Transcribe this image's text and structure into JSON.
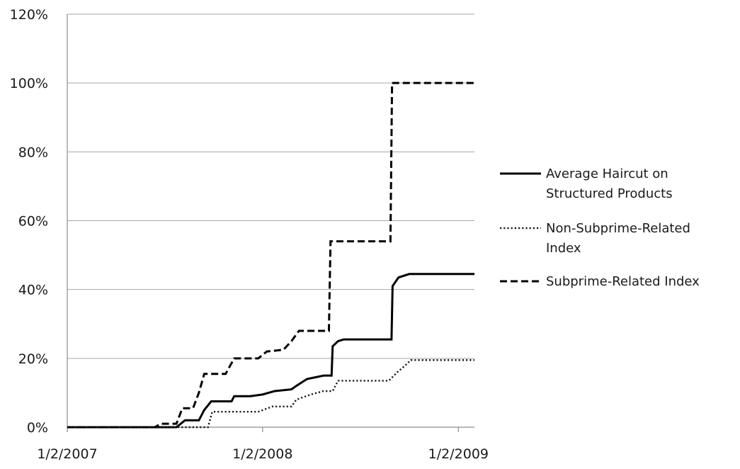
{
  "chart_data": {
    "type": "line",
    "title": "",
    "xlabel": "",
    "ylabel": "",
    "x_ticks": [
      "1/2/2007",
      "1/2/2008",
      "1/2/2009"
    ],
    "x_range": [
      "2007-01-02",
      "2009-02-01"
    ],
    "y_ticks": [
      "0%",
      "20%",
      "40%",
      "60%",
      "80%",
      "100%",
      "120%"
    ],
    "ylim": [
      0,
      120
    ],
    "y_unit": "%",
    "grid": "horizontal",
    "legend_position": "right",
    "series": [
      {
        "name": "Average Haircut on Structured Products",
        "line_style": "solid",
        "color": "#000000",
        "points": [
          [
            "2007-01-02",
            0
          ],
          [
            "2007-07-25",
            0
          ],
          [
            "2007-08-10",
            2
          ],
          [
            "2007-09-05",
            2
          ],
          [
            "2007-09-15",
            5
          ],
          [
            "2007-09-28",
            7.5
          ],
          [
            "2007-11-05",
            7.5
          ],
          [
            "2007-11-10",
            9
          ],
          [
            "2007-12-10",
            9
          ],
          [
            "2008-01-02",
            9.5
          ],
          [
            "2008-01-25",
            10.5
          ],
          [
            "2008-02-25",
            11
          ],
          [
            "2008-03-05",
            12
          ],
          [
            "2008-03-25",
            14
          ],
          [
            "2008-04-25",
            15
          ],
          [
            "2008-05-10",
            15
          ],
          [
            "2008-05-12",
            23.5
          ],
          [
            "2008-05-22",
            25
          ],
          [
            "2008-06-02",
            25.5
          ],
          [
            "2008-08-30",
            25.5
          ],
          [
            "2008-09-01",
            41
          ],
          [
            "2008-09-12",
            43.5
          ],
          [
            "2008-10-02",
            44.5
          ],
          [
            "2008-10-12",
            44.5
          ],
          [
            "2009-02-01",
            44.5
          ]
        ]
      },
      {
        "name": "Non-Subprime-Related Index",
        "line_style": "dotted",
        "color": "#1a1a1a",
        "points": [
          [
            "2007-01-02",
            0
          ],
          [
            "2007-09-22",
            0
          ],
          [
            "2007-09-30",
            4.5
          ],
          [
            "2007-12-25",
            4.5
          ],
          [
            "2008-01-20",
            6
          ],
          [
            "2008-02-25",
            6
          ],
          [
            "2008-03-05",
            8
          ],
          [
            "2008-04-01",
            9.5
          ],
          [
            "2008-04-25",
            10.5
          ],
          [
            "2008-05-12",
            10.5
          ],
          [
            "2008-05-22",
            13.5
          ],
          [
            "2008-08-25",
            13.5
          ],
          [
            "2008-09-10",
            16
          ],
          [
            "2008-09-25",
            18
          ],
          [
            "2008-10-05",
            19.5
          ],
          [
            "2009-02-01",
            19.5
          ]
        ]
      },
      {
        "name": "Subprime-Related Index",
        "line_style": "dashed",
        "color": "#000000",
        "points": [
          [
            "2007-01-02",
            0
          ],
          [
            "2007-06-15",
            0
          ],
          [
            "2007-06-25",
            1
          ],
          [
            "2007-07-25",
            1
          ],
          [
            "2007-08-05",
            5.5
          ],
          [
            "2007-08-25",
            5.5
          ],
          [
            "2007-09-05",
            10
          ],
          [
            "2007-09-15",
            15.5
          ],
          [
            "2007-10-25",
            15.5
          ],
          [
            "2007-11-10",
            20
          ],
          [
            "2007-12-25",
            20
          ],
          [
            "2008-01-10",
            22
          ],
          [
            "2008-02-10",
            22.5
          ],
          [
            "2008-02-25",
            25
          ],
          [
            "2008-03-10",
            28
          ],
          [
            "2008-05-05",
            28
          ],
          [
            "2008-05-08",
            54
          ],
          [
            "2008-08-28",
            54
          ],
          [
            "2008-08-31",
            100
          ],
          [
            "2009-02-01",
            100
          ]
        ]
      }
    ]
  }
}
